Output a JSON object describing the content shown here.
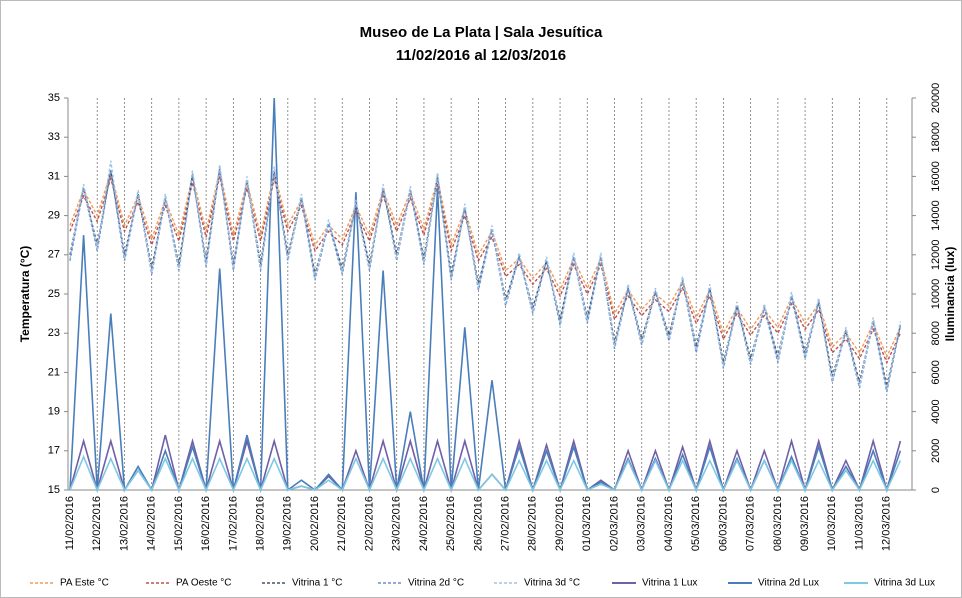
{
  "chart_data": {
    "type": "line",
    "title": "Museo de La Plata | Sala Jesuítica",
    "subtitle": "11/02/2016 al 12/03/2016",
    "y_label": "Temperatura (°C)",
    "y2_label": "Iluminancia (lux)",
    "categories": [
      "11/02/2016",
      null,
      "12/02/2016",
      null,
      "13/02/2016",
      null,
      "14/02/2016",
      null,
      "15/02/2016",
      null,
      "16/02/2016",
      null,
      "17/02/2016",
      null,
      "18/02/2016",
      null,
      "19/02/2016",
      null,
      "20/02/2016",
      null,
      "21/02/2016",
      null,
      "22/02/2016",
      null,
      "23/02/2016",
      null,
      "24/02/2016",
      null,
      "25/02/2016",
      null,
      "26/02/2016",
      null,
      "27/02/2016",
      null,
      "28/02/2016",
      null,
      "29/02/2016",
      null,
      "01/03/2016",
      null,
      "02/03/2016",
      null,
      "03/03/2016",
      null,
      "04/03/2016",
      null,
      "05/03/2016",
      null,
      "06/03/2016",
      null,
      "07/03/2016",
      null,
      "08/03/2016",
      null,
      "09/03/2016",
      null,
      "10/03/2016",
      null,
      "11/03/2016",
      null,
      "12/03/2016",
      null
    ],
    "ylim": [
      15,
      35
    ],
    "yticks": [
      15,
      17,
      19,
      21,
      23,
      25,
      27,
      29,
      31,
      33,
      35
    ],
    "y2lim": [
      0,
      20000
    ],
    "y2ticks": [
      0,
      2000,
      4000,
      6000,
      8000,
      10000,
      12000,
      14000,
      16000,
      18000,
      20000
    ],
    "grid": false,
    "legend": "bottom",
    "series": [
      {
        "name": "PA Este °C",
        "color": "#f29a55",
        "dashed": true,
        "values": [
          28.5,
          30.3,
          29.0,
          31.2,
          28.5,
          30.0,
          27.8,
          29.8,
          28.0,
          31.0,
          28.2,
          31.3,
          28.0,
          30.7,
          28.0,
          31.2,
          28.5,
          29.8,
          27.5,
          28.5,
          27.8,
          29.5,
          28.0,
          30.3,
          28.5,
          30.2,
          28.3,
          30.9,
          27.5,
          29.3,
          27.0,
          28.2,
          26.2,
          26.8,
          25.8,
          26.6,
          25.2,
          26.8,
          25.3,
          26.8,
          24.0,
          25.2,
          24.2,
          25.0,
          24.4,
          25.6,
          23.8,
          25.2,
          23.0,
          24.3,
          23.2,
          24.2,
          23.3,
          24.8,
          23.5,
          24.5,
          22.3,
          23.0,
          22.0,
          23.5,
          21.8,
          23.3
        ]
      },
      {
        "name": "PA Oeste °C",
        "color": "#c0504d",
        "dashed": true,
        "values": [
          28.2,
          30.0,
          28.7,
          30.9,
          28.2,
          29.7,
          27.5,
          29.5,
          27.7,
          30.7,
          27.9,
          31.0,
          27.7,
          30.4,
          27.7,
          30.9,
          28.2,
          29.5,
          27.2,
          28.2,
          27.5,
          29.2,
          27.7,
          30.0,
          28.2,
          29.9,
          28.0,
          30.6,
          27.2,
          29.0,
          26.7,
          27.9,
          25.9,
          26.5,
          25.5,
          26.3,
          24.9,
          26.5,
          25.0,
          26.5,
          23.7,
          24.9,
          23.9,
          24.7,
          24.1,
          25.3,
          23.5,
          24.9,
          22.7,
          24.0,
          22.9,
          23.9,
          23.0,
          24.5,
          23.2,
          24.2,
          22.0,
          22.7,
          21.7,
          23.2,
          21.5,
          23.0
        ]
      },
      {
        "name": "Vitrina 1 °C",
        "color": "#44546a",
        "dashed": true,
        "values": [
          27.0,
          30.4,
          27.5,
          31.3,
          27.0,
          30.1,
          26.3,
          29.9,
          26.5,
          31.1,
          26.7,
          31.4,
          26.5,
          30.8,
          26.5,
          31.3,
          27.0,
          29.9,
          26.0,
          28.6,
          26.3,
          29.6,
          26.5,
          30.4,
          27.0,
          30.3,
          26.8,
          31.0,
          26.0,
          29.4,
          25.5,
          28.3,
          24.7,
          26.9,
          24.3,
          26.7,
          23.7,
          26.9,
          23.8,
          26.9,
          22.5,
          25.3,
          22.7,
          25.1,
          22.9,
          25.7,
          22.3,
          25.3,
          21.5,
          24.4,
          21.7,
          24.3,
          21.8,
          24.9,
          22.0,
          24.6,
          20.8,
          23.1,
          20.5,
          23.6,
          20.3,
          23.4
        ]
      },
      {
        "name": "Vitrina 2d °C",
        "color": "#6f8fc8",
        "dashed": true,
        "values": [
          26.7,
          30.4,
          27.2,
          31.3,
          26.7,
          30.1,
          26.0,
          29.9,
          26.2,
          31.1,
          26.4,
          31.4,
          26.2,
          30.8,
          26.2,
          31.3,
          26.7,
          29.9,
          25.7,
          28.6,
          26.0,
          29.6,
          26.2,
          30.4,
          26.7,
          30.3,
          26.5,
          31.0,
          25.7,
          29.4,
          25.2,
          28.3,
          24.4,
          26.9,
          24.0,
          26.7,
          23.4,
          26.9,
          23.5,
          26.9,
          22.2,
          25.3,
          22.4,
          25.1,
          22.6,
          25.7,
          22.0,
          25.3,
          21.2,
          24.4,
          21.4,
          24.3,
          21.5,
          24.9,
          21.7,
          24.6,
          20.5,
          23.1,
          20.2,
          23.6,
          20.0,
          23.4
        ]
      },
      {
        "name": "Vitrina 3d °C",
        "color": "#9dc3e6",
        "dashed": true,
        "values": [
          26.8,
          30.6,
          27.3,
          31.8,
          26.8,
          30.3,
          26.1,
          30.1,
          26.3,
          31.3,
          26.5,
          31.6,
          26.3,
          31.0,
          26.3,
          31.5,
          26.8,
          30.1,
          25.8,
          28.8,
          26.1,
          29.8,
          26.3,
          30.6,
          26.8,
          30.5,
          26.6,
          31.2,
          25.8,
          29.6,
          25.3,
          28.5,
          24.5,
          27.1,
          24.1,
          26.9,
          23.5,
          27.1,
          23.6,
          27.1,
          22.3,
          25.5,
          22.5,
          25.3,
          22.7,
          25.9,
          22.1,
          25.5,
          21.3,
          24.6,
          21.5,
          24.5,
          21.6,
          25.1,
          21.8,
          24.8,
          20.6,
          23.3,
          20.3,
          23.8,
          20.1,
          23.6
        ]
      },
      {
        "name": "Vitrina 1 Lux",
        "color": "#7060a8",
        "axis": "y2",
        "dashed": false,
        "values": [
          0,
          2500,
          0,
          2500,
          0,
          1000,
          0,
          2800,
          0,
          2500,
          0,
          2500,
          0,
          2500,
          0,
          2500,
          0,
          200,
          0,
          700,
          0,
          2000,
          0,
          2500,
          0,
          2500,
          0,
          2500,
          0,
          2500,
          0,
          800,
          0,
          2500,
          0,
          2300,
          0,
          2500,
          0,
          500,
          0,
          2000,
          0,
          2000,
          0,
          2200,
          0,
          2500,
          0,
          2000,
          0,
          2000,
          0,
          2500,
          0,
          2500,
          0,
          1500,
          0,
          2500,
          0,
          2500
        ]
      },
      {
        "name": "Vitrina 2d Lux",
        "color": "#4a7ebb",
        "axis": "y2",
        "dashed": false,
        "values": [
          0,
          13000,
          0,
          9000,
          0,
          1200,
          0,
          2000,
          0,
          2200,
          0,
          11300,
          0,
          2800,
          0,
          20000,
          0,
          500,
          0,
          800,
          0,
          15200,
          0,
          11200,
          0,
          4000,
          0,
          15400,
          0,
          8300,
          0,
          5600,
          0,
          2200,
          0,
          2000,
          0,
          2200,
          0,
          400,
          0,
          1600,
          0,
          1600,
          0,
          1800,
          0,
          2200,
          0,
          1600,
          0,
          1500,
          0,
          1700,
          0,
          2200,
          0,
          1200,
          0,
          2000,
          0,
          2000
        ]
      },
      {
        "name": "Vitrina 3d Lux",
        "color": "#7ec8e3",
        "axis": "y2",
        "dashed": false,
        "values": [
          0,
          1700,
          0,
          1600,
          0,
          1000,
          0,
          1600,
          0,
          1600,
          0,
          1600,
          0,
          1600,
          0,
          1600,
          0,
          200,
          0,
          500,
          0,
          1600,
          0,
          1600,
          0,
          1600,
          0,
          1600,
          0,
          1600,
          0,
          800,
          0,
          1500,
          0,
          1500,
          0,
          1500,
          0,
          300,
          0,
          1500,
          0,
          1500,
          0,
          1500,
          0,
          1500,
          0,
          1500,
          0,
          1500,
          0,
          1500,
          0,
          1500,
          0,
          1000,
          0,
          1500,
          0,
          1500
        ]
      }
    ]
  }
}
